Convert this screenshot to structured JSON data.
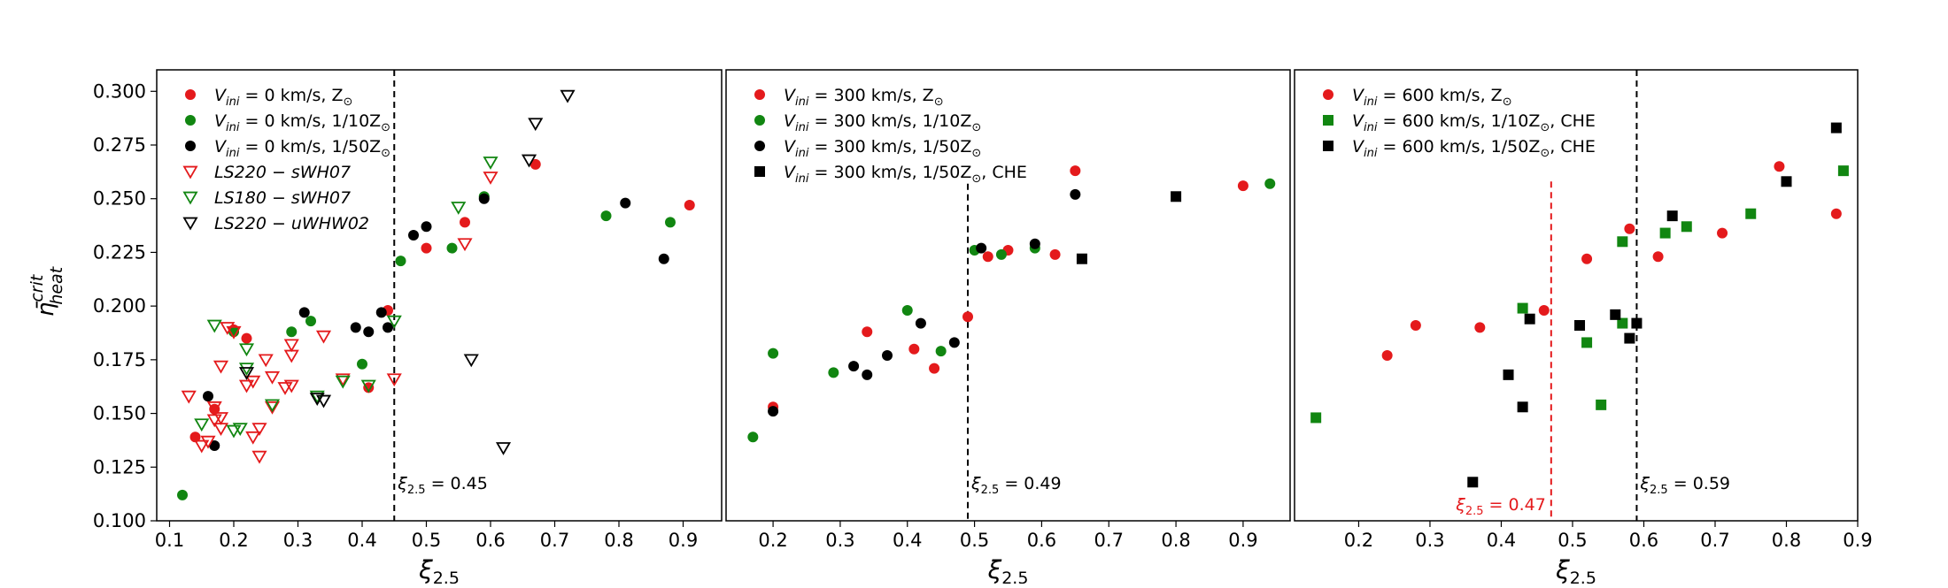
{
  "figure": {
    "ylabel": "η̄",
    "ylabel_sup": "crit",
    "ylabel_sub": "heat",
    "xlabel": "ξ",
    "xlabel_sub": "2.5"
  },
  "colors": {
    "red": "#e41a1c",
    "green": "#118611",
    "black": "#000000"
  },
  "chart_data": [
    {
      "type": "scatter",
      "panel": "left",
      "xlim": [
        0.08,
        0.96
      ],
      "ylim": [
        0.1,
        0.31
      ],
      "xticks": [
        0.1,
        0.2,
        0.3,
        0.4,
        0.5,
        0.6,
        0.7,
        0.8,
        0.9
      ],
      "yticks": [
        0.1,
        0.125,
        0.15,
        0.175,
        0.2,
        0.225,
        0.25,
        0.275,
        0.3
      ],
      "ytick_labels": [
        "0.100",
        "0.125",
        "0.150",
        "0.175",
        "0.200",
        "0.225",
        "0.250",
        "0.275",
        "0.300"
      ],
      "legend_position": "upper-left",
      "vlines": [
        {
          "x": 0.45,
          "color": "black",
          "label": "ξ",
          "sub": "2.5",
          "value": "= 0.45",
          "label_side": "right"
        }
      ],
      "series": [
        {
          "label": "V",
          "sub": "ini",
          "rest": " = 0 km/s, Z",
          "sun": "⊙",
          "marker": "circle",
          "color": "red",
          "points": [
            [
              0.14,
              0.139
            ],
            [
              0.17,
              0.152
            ],
            [
              0.2,
              0.189
            ],
            [
              0.22,
              0.185
            ],
            [
              0.41,
              0.162
            ],
            [
              0.44,
              0.198
            ],
            [
              0.5,
              0.227
            ],
            [
              0.56,
              0.239
            ],
            [
              0.67,
              0.266
            ],
            [
              0.91,
              0.247
            ]
          ]
        },
        {
          "label": "V",
          "sub": "ini",
          "rest": " = 0 km/s, 1/10Z",
          "sun": "⊙",
          "marker": "circle",
          "color": "green",
          "points": [
            [
              0.12,
              0.112
            ],
            [
              0.2,
              0.188
            ],
            [
              0.29,
              0.188
            ],
            [
              0.32,
              0.193
            ],
            [
              0.4,
              0.173
            ],
            [
              0.46,
              0.221
            ],
            [
              0.54,
              0.227
            ],
            [
              0.59,
              0.251
            ],
            [
              0.78,
              0.242
            ],
            [
              0.88,
              0.239
            ]
          ]
        },
        {
          "label": "V",
          "sub": "ini",
          "rest": " = 0 km/s, 1/50Z",
          "sun": "⊙",
          "marker": "circle",
          "color": "black",
          "points": [
            [
              0.16,
              0.158
            ],
            [
              0.17,
              0.135
            ],
            [
              0.31,
              0.197
            ],
            [
              0.39,
              0.19
            ],
            [
              0.41,
              0.188
            ],
            [
              0.43,
              0.197
            ],
            [
              0.44,
              0.19
            ],
            [
              0.48,
              0.233
            ],
            [
              0.5,
              0.237
            ],
            [
              0.59,
              0.25
            ],
            [
              0.81,
              0.248
            ],
            [
              0.87,
              0.222
            ]
          ]
        },
        {
          "label": "LS220 − sWH07",
          "marker": "tri-down",
          "color": "red",
          "points": [
            [
              0.13,
              0.158
            ],
            [
              0.15,
              0.135
            ],
            [
              0.16,
              0.137
            ],
            [
              0.17,
              0.147
            ],
            [
              0.17,
              0.153
            ],
            [
              0.18,
              0.143
            ],
            [
              0.18,
              0.148
            ],
            [
              0.18,
              0.172
            ],
            [
              0.19,
              0.19
            ],
            [
              0.2,
              0.188
            ],
            [
              0.22,
              0.163
            ],
            [
              0.23,
              0.139
            ],
            [
              0.23,
              0.165
            ],
            [
              0.24,
              0.143
            ],
            [
              0.24,
              0.13
            ],
            [
              0.25,
              0.175
            ],
            [
              0.26,
              0.153
            ],
            [
              0.26,
              0.167
            ],
            [
              0.28,
              0.162
            ],
            [
              0.29,
              0.163
            ],
            [
              0.29,
              0.177
            ],
            [
              0.29,
              0.182
            ],
            [
              0.34,
              0.186
            ],
            [
              0.37,
              0.166
            ],
            [
              0.45,
              0.166
            ],
            [
              0.56,
              0.229
            ],
            [
              0.6,
              0.26
            ]
          ]
        },
        {
          "label": "LS180 − sWH07",
          "marker": "tri-down",
          "color": "green",
          "points": [
            [
              0.15,
              0.145
            ],
            [
              0.17,
              0.191
            ],
            [
              0.2,
              0.142
            ],
            [
              0.21,
              0.143
            ],
            [
              0.22,
              0.171
            ],
            [
              0.22,
              0.18
            ],
            [
              0.26,
              0.154
            ],
            [
              0.33,
              0.158
            ],
            [
              0.37,
              0.165
            ],
            [
              0.41,
              0.163
            ],
            [
              0.45,
              0.193
            ],
            [
              0.55,
              0.246
            ],
            [
              0.6,
              0.267
            ]
          ]
        },
        {
          "label": "LS220 − uWHW02",
          "marker": "tri-down",
          "color": "black",
          "points": [
            [
              0.22,
              0.169
            ],
            [
              0.33,
              0.157
            ],
            [
              0.34,
              0.156
            ],
            [
              0.57,
              0.175
            ],
            [
              0.62,
              0.134
            ],
            [
              0.66,
              0.268
            ],
            [
              0.67,
              0.285
            ],
            [
              0.72,
              0.298
            ]
          ]
        }
      ]
    },
    {
      "type": "scatter",
      "panel": "middle",
      "xlim": [
        0.13,
        0.97
      ],
      "ylim": [
        0.1,
        0.31
      ],
      "xticks": [
        0.2,
        0.3,
        0.4,
        0.5,
        0.6,
        0.7,
        0.8,
        0.9
      ],
      "legend_position": "upper-left",
      "vlines": [
        {
          "x": 0.49,
          "color": "black",
          "label": "ξ",
          "sub": "2.5",
          "value": "= 0.49",
          "label_side": "right"
        }
      ],
      "series": [
        {
          "label": "V",
          "sub": "ini",
          "rest": " = 300 km/s, Z",
          "sun": "⊙",
          "marker": "circle",
          "color": "red",
          "points": [
            [
              0.2,
              0.153
            ],
            [
              0.34,
              0.188
            ],
            [
              0.41,
              0.18
            ],
            [
              0.44,
              0.171
            ],
            [
              0.49,
              0.195
            ],
            [
              0.52,
              0.223
            ],
            [
              0.55,
              0.226
            ],
            [
              0.62,
              0.224
            ],
            [
              0.65,
              0.263
            ],
            [
              0.9,
              0.256
            ]
          ]
        },
        {
          "label": "V",
          "sub": "ini",
          "rest": " = 300 km/s, 1/10Z",
          "sun": "⊙",
          "marker": "circle",
          "color": "green",
          "points": [
            [
              0.17,
              0.139
            ],
            [
              0.2,
              0.178
            ],
            [
              0.29,
              0.169
            ],
            [
              0.4,
              0.198
            ],
            [
              0.45,
              0.179
            ],
            [
              0.5,
              0.226
            ],
            [
              0.54,
              0.224
            ],
            [
              0.59,
              0.227
            ],
            [
              0.94,
              0.257
            ]
          ]
        },
        {
          "label": "V",
          "sub": "ini",
          "rest": " = 300 km/s, 1/50Z",
          "sun": "⊙",
          "marker": "circle",
          "color": "black",
          "points": [
            [
              0.2,
              0.151
            ],
            [
              0.32,
              0.172
            ],
            [
              0.34,
              0.168
            ],
            [
              0.37,
              0.177
            ],
            [
              0.42,
              0.192
            ],
            [
              0.47,
              0.183
            ],
            [
              0.51,
              0.227
            ],
            [
              0.59,
              0.229
            ],
            [
              0.65,
              0.252
            ]
          ]
        },
        {
          "label": "V",
          "sub": "ini",
          "rest": " = 300 km/s, 1/50Z",
          "sun": "⊙",
          "tail": ", CHE",
          "marker": "square",
          "color": "black",
          "points": [
            [
              0.66,
              0.222
            ],
            [
              0.8,
              0.251
            ]
          ]
        }
      ]
    },
    {
      "type": "scatter",
      "panel": "right",
      "xlim": [
        0.11,
        0.9
      ],
      "ylim": [
        0.1,
        0.31
      ],
      "xticks": [
        0.2,
        0.3,
        0.4,
        0.5,
        0.6,
        0.7,
        0.8,
        0.9
      ],
      "legend_position": "upper-left",
      "vlines": [
        {
          "x": 0.47,
          "color": "red",
          "label": "ξ",
          "sub": "2.5",
          "value": "= 0.47",
          "label_side": "left"
        },
        {
          "x": 0.59,
          "color": "black",
          "label": "ξ",
          "sub": "2.5",
          "value": "= 0.59",
          "label_side": "right"
        }
      ],
      "series": [
        {
          "label": "V",
          "sub": "ini",
          "rest": " = 600 km/s, Z",
          "sun": "⊙",
          "marker": "circle",
          "color": "red",
          "points": [
            [
              0.24,
              0.177
            ],
            [
              0.28,
              0.191
            ],
            [
              0.37,
              0.19
            ],
            [
              0.46,
              0.198
            ],
            [
              0.52,
              0.222
            ],
            [
              0.58,
              0.236
            ],
            [
              0.62,
              0.223
            ],
            [
              0.71,
              0.234
            ],
            [
              0.79,
              0.265
            ],
            [
              0.87,
              0.243
            ]
          ]
        },
        {
          "label": "V",
          "sub": "ini",
          "rest": " = 600 km/s, 1/10Z",
          "sun": "⊙",
          "tail": ", CHE",
          "marker": "square",
          "color": "green",
          "points": [
            [
              0.14,
              0.148
            ],
            [
              0.43,
              0.199
            ],
            [
              0.52,
              0.183
            ],
            [
              0.54,
              0.154
            ],
            [
              0.57,
              0.23
            ],
            [
              0.57,
              0.192
            ],
            [
              0.63,
              0.234
            ],
            [
              0.66,
              0.237
            ],
            [
              0.75,
              0.243
            ],
            [
              0.88,
              0.263
            ]
          ]
        },
        {
          "label": "V",
          "sub": "ini",
          "rest": " = 600 km/s, 1/50Z",
          "sun": "⊙",
          "tail": ", CHE",
          "marker": "square",
          "color": "black",
          "points": [
            [
              0.36,
              0.118
            ],
            [
              0.41,
              0.168
            ],
            [
              0.43,
              0.153
            ],
            [
              0.44,
              0.194
            ],
            [
              0.51,
              0.191
            ],
            [
              0.56,
              0.196
            ],
            [
              0.58,
              0.185
            ],
            [
              0.59,
              0.192
            ],
            [
              0.64,
              0.242
            ],
            [
              0.8,
              0.258
            ],
            [
              0.87,
              0.283
            ]
          ]
        }
      ]
    }
  ]
}
